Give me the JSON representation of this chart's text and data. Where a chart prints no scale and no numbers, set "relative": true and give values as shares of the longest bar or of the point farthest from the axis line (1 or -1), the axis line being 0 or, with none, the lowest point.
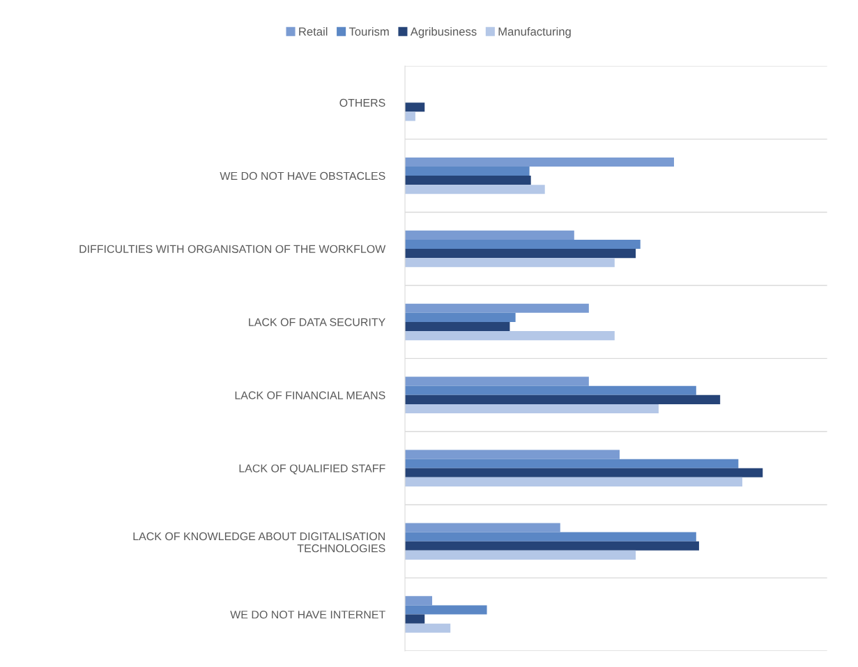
{
  "chart_data": {
    "type": "bar",
    "orientation": "horizontal",
    "relative": true,
    "grid": "y",
    "legend": "top",
    "categories": [
      "OTHERS",
      "WE DO NOT HAVE OBSTACLES",
      "DIFFICULTIES WITH ORGANISATION OF THE WORKFLOW",
      "LACK OF DATA SECURITY",
      "LACK OF FINANCIAL MEANS",
      "LACK OF QUALIFIED STAFF",
      "LACK OF KNOWLEDGE ABOUT DIGITALISATION\nTECHNOLOGIES",
      "WE DO NOT HAVE INTERNET"
    ],
    "series": [
      {
        "name": "Retail",
        "color": "#7a9bd2",
        "values": [
          0,
          0.752,
          0.473,
          0.514,
          0.514,
          0.6,
          0.434,
          0.076
        ]
      },
      {
        "name": "Tourism",
        "color": "#5b87c5",
        "values": [
          0,
          0.348,
          0.658,
          0.309,
          0.814,
          0.932,
          0.814,
          0.229
        ]
      },
      {
        "name": "Agribusiness",
        "color": "#264478",
        "values": [
          0.055,
          0.352,
          0.645,
          0.293,
          0.881,
          1,
          0.822,
          0.055
        ]
      },
      {
        "name": "Manufacturing",
        "color": "#b4c7e7",
        "values": [
          0.029,
          0.391,
          0.586,
          0.586,
          0.709,
          0.943,
          0.645,
          0.127
        ]
      }
    ]
  }
}
